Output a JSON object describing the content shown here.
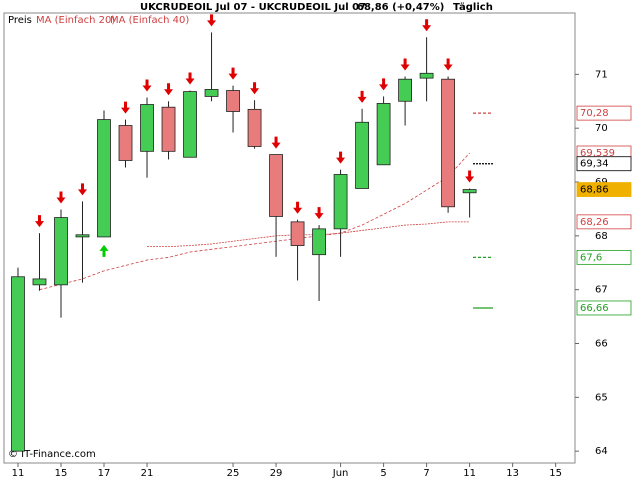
{
  "chart_data": {
    "type": "candlestick",
    "title": "UKCRUDEOIL Jul 07 - UKCRUDEOIL Jul 07",
    "last": "68,86 (+0,47%)",
    "period": "Täglich",
    "footer": "© IT-Finance.com",
    "x": [
      0,
      1,
      2,
      3,
      4,
      5,
      6,
      7,
      8,
      9,
      10,
      11,
      12,
      13,
      14,
      15,
      16,
      17,
      18,
      19,
      20,
      21
    ],
    "open": [
      64.0,
      67.09,
      67.09,
      67.98,
      67.98,
      70.05,
      69.57,
      70.39,
      69.46,
      70.59,
      70.7,
      70.35,
      69.51,
      68.26,
      67.65,
      68.13,
      68.88,
      69.32,
      70.5,
      70.93,
      70.91,
      68.8
    ],
    "high": [
      67.41,
      68.05,
      68.49,
      68.64,
      70.33,
      70.16,
      70.57,
      70.5,
      70.7,
      71.78,
      70.79,
      70.52,
      69.51,
      68.3,
      68.2,
      69.23,
      70.36,
      70.59,
      70.96,
      71.69,
      70.96,
      68.88
    ],
    "low": [
      64.0,
      66.98,
      66.48,
      67.13,
      67.98,
      69.27,
      69.08,
      69.42,
      69.46,
      70.5,
      69.92,
      69.62,
      67.61,
      67.17,
      66.79,
      67.61,
      68.88,
      69.32,
      70.05,
      70.5,
      68.43,
      68.34
    ],
    "close": [
      67.24,
      67.2,
      68.34,
      68.02,
      70.16,
      69.4,
      70.44,
      69.57,
      70.68,
      70.72,
      70.31,
      69.66,
      68.36,
      67.82,
      68.13,
      69.14,
      70.11,
      70.46,
      70.91,
      71.02,
      68.54,
      68.86
    ],
    "up_color": "#44cc55",
    "down_color": "#e87b7b",
    "signals": [
      null,
      "down",
      "down",
      "down",
      "up",
      "down",
      "down",
      "down",
      "down",
      "down",
      "down",
      "down",
      "down",
      "down",
      "down",
      "down",
      "down",
      "down",
      "down",
      "down",
      "down",
      "down"
    ],
    "series": [
      {
        "name": "Preis",
        "color": "#000000"
      },
      {
        "name": "MA (Einfach 20)",
        "color": "#d04040",
        "values": [
          null,
          67.0,
          67.1,
          67.2,
          67.35,
          67.45,
          67.55,
          67.6,
          67.7,
          67.75,
          67.8,
          67.85,
          67.9,
          67.95,
          68.0,
          68.05,
          68.2,
          68.4,
          68.6,
          68.85,
          69.1,
          69.539
        ]
      },
      {
        "name": "MA (Einfach 40)",
        "color": "#d04040",
        "values": [
          null,
          null,
          null,
          null,
          null,
          null,
          67.8,
          67.8,
          67.82,
          67.85,
          67.9,
          67.95,
          68.0,
          68.02,
          68.02,
          68.05,
          68.1,
          68.15,
          68.2,
          68.22,
          68.26,
          68.26
        ]
      }
    ],
    "levels": [
      {
        "value": 70.28,
        "label": "70,28",
        "color": "#d04040",
        "style": "dashed"
      },
      {
        "value": 69.539,
        "label": "69,539",
        "color": "#d04040",
        "style": "box"
      },
      {
        "value": 69.34,
        "label": "69,34",
        "color": "#000000",
        "style": "dotted"
      },
      {
        "value": 68.86,
        "label": "68,86",
        "color": "#f0b000",
        "style": "filled"
      },
      {
        "value": 68.26,
        "label": "68,26",
        "color": "#d04040",
        "style": "box"
      },
      {
        "value": 67.6,
        "label": "67,6",
        "color": "#20a020",
        "style": "dashed"
      },
      {
        "value": 66.66,
        "label": "66,66",
        "color": "#20a020",
        "style": "solid"
      }
    ],
    "xlim": [
      -0.65,
      25.9
    ],
    "xticks": [
      {
        "value": 0,
        "label": "11"
      },
      {
        "value": 2,
        "label": "15"
      },
      {
        "value": 4,
        "label": "17"
      },
      {
        "value": 6,
        "label": "21"
      },
      {
        "value": 10,
        "label": "25"
      },
      {
        "value": 12,
        "label": "29"
      },
      {
        "value": 15,
        "label": "Jun"
      },
      {
        "value": 17,
        "label": "5"
      },
      {
        "value": 19,
        "label": "7"
      },
      {
        "value": 21,
        "label": "11"
      },
      {
        "value": 23,
        "label": "13"
      },
      {
        "value": 25,
        "label": "15"
      }
    ],
    "ylim": [
      63.78,
      72.14
    ],
    "yticks": [
      64,
      65,
      66,
      67,
      68,
      69,
      70,
      71
    ]
  }
}
